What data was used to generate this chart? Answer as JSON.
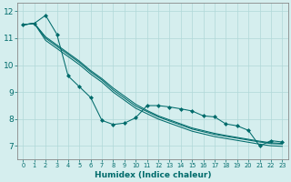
{
  "background_color": "#d5eeee",
  "line_color": "#006b6b",
  "grid_color": "#b0d8d8",
  "xlim": [
    -0.5,
    23.5
  ],
  "ylim": [
    6.5,
    12.3
  ],
  "yticks": [
    7,
    8,
    9,
    10,
    11,
    12
  ],
  "xticks": [
    0,
    1,
    2,
    3,
    4,
    5,
    6,
    7,
    8,
    9,
    10,
    11,
    12,
    13,
    14,
    15,
    16,
    17,
    18,
    19,
    20,
    21,
    22,
    23
  ],
  "xlabel": "Humidex (Indice chaleur)",
  "series_marker": {
    "x": [
      0,
      1,
      2,
      3,
      4,
      5,
      6,
      7,
      8,
      9,
      10,
      11,
      12,
      13,
      14,
      15,
      16,
      17,
      18,
      19,
      20,
      21,
      22,
      23
    ],
    "y": [
      11.5,
      11.55,
      11.85,
      11.15,
      9.6,
      9.2,
      8.8,
      7.95,
      7.8,
      7.85,
      8.05,
      8.5,
      8.5,
      8.45,
      8.38,
      8.3,
      8.12,
      8.08,
      7.82,
      7.75,
      7.58,
      7.0,
      7.2,
      7.15
    ]
  },
  "series_smooth": [
    [
      11.5,
      11.55,
      11.05,
      10.75,
      10.45,
      10.15,
      9.8,
      9.5,
      9.15,
      8.85,
      8.55,
      8.32,
      8.12,
      7.97,
      7.82,
      7.67,
      7.57,
      7.47,
      7.39,
      7.32,
      7.25,
      7.18,
      7.12,
      7.1
    ],
    [
      11.5,
      11.55,
      11.0,
      10.7,
      10.4,
      10.1,
      9.75,
      9.45,
      9.08,
      8.78,
      8.48,
      8.28,
      8.08,
      7.93,
      7.78,
      7.63,
      7.53,
      7.43,
      7.36,
      7.29,
      7.22,
      7.15,
      7.09,
      7.07
    ],
    [
      11.5,
      11.55,
      10.92,
      10.62,
      10.32,
      10.02,
      9.67,
      9.37,
      9.0,
      8.7,
      8.4,
      8.2,
      8.0,
      7.85,
      7.7,
      7.55,
      7.45,
      7.35,
      7.28,
      7.21,
      7.14,
      7.07,
      7.01,
      6.99
    ]
  ]
}
